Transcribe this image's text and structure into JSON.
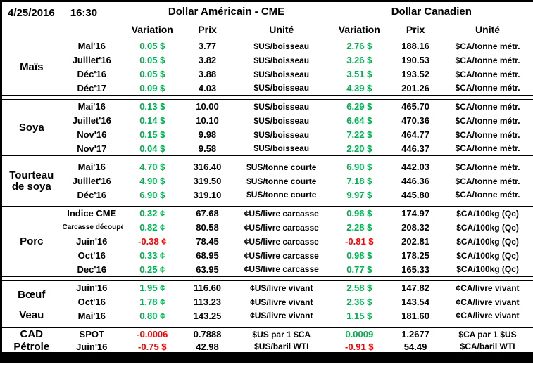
{
  "meta": {
    "date": "4/25/2016",
    "time": "16:30"
  },
  "header": {
    "us_title": "Dollar Américain - CME",
    "ca_title": "Dollar Canadien",
    "col_variation": "Variation",
    "col_prix": "Prix",
    "col_unite": "Unité"
  },
  "colors": {
    "positive": "#00B050",
    "negative": "#FF0000"
  },
  "blocks": [
    {
      "groups": [
        {
          "name": "Maïs",
          "rows": [
            {
              "month": "Mai'16",
              "us_var": "0.05 $",
              "us_prix": "3.77",
              "us_unite": "$US/boisseau",
              "ca_var": "2.76 $",
              "ca_prix": "188.16",
              "ca_unite": "$CA/tonne métr."
            },
            {
              "month": "Juillet'16",
              "us_var": "0.05 $",
              "us_prix": "3.82",
              "us_unite": "$US/boisseau",
              "ca_var": "3.26 $",
              "ca_prix": "190.53",
              "ca_unite": "$CA/tonne métr."
            },
            {
              "month": "Déc'16",
              "us_var": "0.05 $",
              "us_prix": "3.88",
              "us_unite": "$US/boisseau",
              "ca_var": "3.51 $",
              "ca_prix": "193.52",
              "ca_unite": "$CA/tonne métr."
            },
            {
              "month": "Déc'17",
              "us_var": "0.09 $",
              "us_prix": "4.03",
              "us_unite": "$US/boisseau",
              "ca_var": "4.39 $",
              "ca_prix": "201.26",
              "ca_unite": "$CA/tonne métr."
            }
          ]
        }
      ]
    },
    {
      "groups": [
        {
          "name": "Soya",
          "rows": [
            {
              "month": "Mai'16",
              "us_var": "0.13 $",
              "us_prix": "10.00",
              "us_unite": "$US/boisseau",
              "ca_var": "6.29 $",
              "ca_prix": "465.70",
              "ca_unite": "$CA/tonne métr."
            },
            {
              "month": "Juillet'16",
              "us_var": "0.14 $",
              "us_prix": "10.10",
              "us_unite": "$US/boisseau",
              "ca_var": "6.64 $",
              "ca_prix": "470.36",
              "ca_unite": "$CA/tonne métr."
            },
            {
              "month": "Nov'16",
              "us_var": "0.15 $",
              "us_prix": "9.98",
              "us_unite": "$US/boisseau",
              "ca_var": "7.22 $",
              "ca_prix": "464.77",
              "ca_unite": "$CA/tonne métr."
            },
            {
              "month": "Nov'17",
              "us_var": "0.04 $",
              "us_prix": "9.58",
              "us_unite": "$US/boisseau",
              "ca_var": "2.20 $",
              "ca_prix": "446.37",
              "ca_unite": "$CA/tonne métr."
            }
          ]
        }
      ]
    },
    {
      "groups": [
        {
          "name": "Tourteau de soya",
          "rows": [
            {
              "month": "Mai'16",
              "us_var": "4.70 $",
              "us_prix": "316.40",
              "us_unite": "$US/tonne courte",
              "ca_var": "6.90 $",
              "ca_prix": "442.03",
              "ca_unite": "$CA/tonne métr."
            },
            {
              "month": "Juillet'16",
              "us_var": "4.90 $",
              "us_prix": "319.50",
              "us_unite": "$US/tonne courte",
              "ca_var": "7.18 $",
              "ca_prix": "446.36",
              "ca_unite": "$CA/tonne métr."
            },
            {
              "month": "Déc'16",
              "us_var": "6.90 $",
              "us_prix": "319.10",
              "us_unite": "$US/tonne courte",
              "ca_var": "9.97 $",
              "ca_prix": "445.80",
              "ca_unite": "$CA/tonne métr."
            }
          ]
        }
      ]
    },
    {
      "groups": [
        {
          "name": "Porc",
          "rows": [
            {
              "month": "Indice CME",
              "us_var": "0.32 ¢",
              "us_prix": "67.68",
              "us_unite": "¢US/livre carcasse",
              "ca_var": "0.96 $",
              "ca_prix": "174.97",
              "ca_unite": "$CA/100kg (Qc)"
            },
            {
              "month": "Carcasse découpée",
              "us_var": "0.82 ¢",
              "us_prix": "80.58",
              "us_unite": "¢US/livre carcasse",
              "ca_var": "2.28 $",
              "ca_prix": "208.32",
              "ca_unite": "$CA/100kg (Qc)"
            },
            {
              "month": "Juin'16",
              "us_var": "-0.38 ¢",
              "us_prix": "78.45",
              "us_unite": "¢US/livre carcasse",
              "ca_var": "-0.81 $",
              "ca_prix": "202.81",
              "ca_unite": "$CA/100kg (Qc)"
            },
            {
              "month": "Oct'16",
              "us_var": "0.33 ¢",
              "us_prix": "68.95",
              "us_unite": "¢US/livre carcasse",
              "ca_var": "0.98 $",
              "ca_prix": "178.25",
              "ca_unite": "$CA/100kg (Qc)"
            },
            {
              "month": "Dec'16",
              "us_var": "0.25 ¢",
              "us_prix": "63.95",
              "us_unite": "¢US/livre carcasse",
              "ca_var": "0.77 $",
              "ca_prix": "165.33",
              "ca_unite": "$CA/100kg (Qc)"
            }
          ]
        }
      ]
    },
    {
      "groups": [
        {
          "name": "Bœuf",
          "rows": [
            {
              "month": "Juin'16",
              "us_var": "1.95 ¢",
              "us_prix": "116.60",
              "us_unite": "¢US/livre vivant",
              "ca_var": "2.58 $",
              "ca_prix": "147.82",
              "ca_unite": "¢CA/livre vivant"
            },
            {
              "month": "Oct'16",
              "us_var": "1.78 ¢",
              "us_prix": "113.23",
              "us_unite": "¢US/livre vivant",
              "ca_var": "2.36 $",
              "ca_prix": "143.54",
              "ca_unite": "¢CA/livre vivant"
            }
          ]
        },
        {
          "name": "Veau",
          "rows": [
            {
              "month": "Mai'16",
              "us_var": "0.80 ¢",
              "us_prix": "143.25",
              "us_unite": "¢US/livre vivant",
              "ca_var": "1.15 $",
              "ca_prix": "181.60",
              "ca_unite": "¢CA/livre vivant"
            }
          ]
        }
      ]
    },
    {
      "groups": [
        {
          "name": "CAD",
          "rows": [
            {
              "month": "SPOT",
              "us_var": "-0.0006",
              "us_prix": "0.7888",
              "us_unite": "$US par 1 $CA",
              "ca_var": "0.0009",
              "ca_prix": "1.2677",
              "ca_unite": "$CA par 1 $US"
            }
          ]
        },
        {
          "name": "Pétrole",
          "rows": [
            {
              "month": "Juin'16",
              "us_var": "-0.75 $",
              "us_prix": "42.98",
              "us_unite": "$US/baril WTI",
              "ca_var": "-0.91 $",
              "ca_prix": "54.49",
              "ca_unite": "$CA/baril WTI"
            }
          ]
        }
      ]
    }
  ]
}
